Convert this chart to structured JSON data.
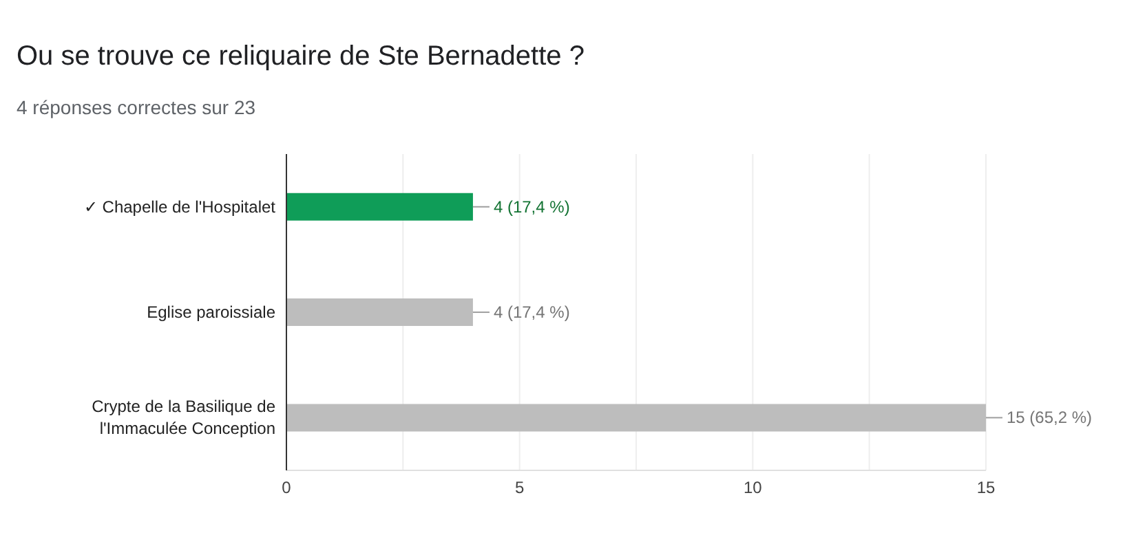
{
  "chart_data": {
    "type": "bar",
    "orientation": "horizontal",
    "title": "Ou se trouve ce reliquaire de Ste Bernadette ?",
    "subtitle": "4 réponses correctes sur 23",
    "categories": [
      "✓ Chapelle de l'Hospitalet",
      "Eglise paroissiale",
      "Crypte de la Basilique de l'Immaculée Conception"
    ],
    "values": [
      4,
      4,
      15
    ],
    "colors": [
      "#0f9d58",
      "#bdbdbd",
      "#bdbdbd"
    ],
    "value_labels": [
      "4 (17,4 %)",
      "4 (17,4 %)",
      "15 (65,2 %)"
    ],
    "xlim": [
      0,
      15
    ],
    "xticks": [
      0,
      {
        "value": 2.5,
        "label": null
      },
      5,
      {
        "value": 7.5,
        "label": null
      },
      10,
      {
        "value": 12.5,
        "label": null
      },
      15
    ],
    "grid": "x"
  }
}
